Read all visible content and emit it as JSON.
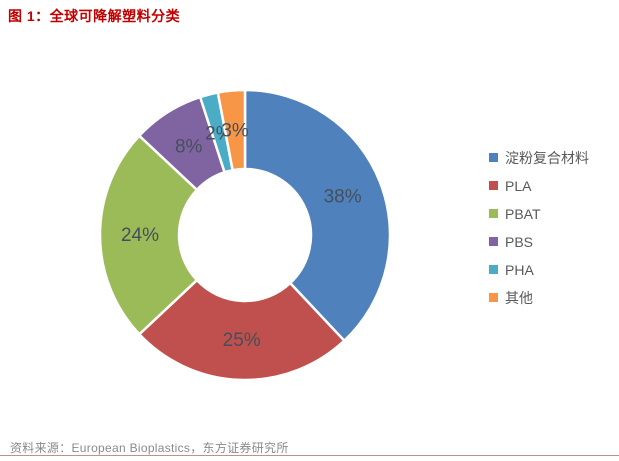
{
  "title": {
    "text": "图 1：全球可降解塑料分类"
  },
  "chart_data": {
    "type": "pie",
    "subtype": "donut",
    "title": "全球可降解塑料分类",
    "legend_position": "right",
    "direction": "clockwise",
    "start_angle_deg": 0,
    "donut_hole_ratio": 0.45,
    "grid": false,
    "series": [
      {
        "name": "淀粉复合材料",
        "value": 38,
        "label": "38%",
        "color": "#4F81BD"
      },
      {
        "name": "PLA",
        "value": 25,
        "label": "25%",
        "color": "#C0504D"
      },
      {
        "name": "PBAT",
        "value": 24,
        "label": "24%",
        "color": "#9BBB59"
      },
      {
        "name": "PBS",
        "value": 8,
        "label": "8%",
        "color": "#8064A2"
      },
      {
        "name": "PHA",
        "value": 2,
        "label": "2%",
        "color": "#4BACC6"
      },
      {
        "name": "其他",
        "value": 3,
        "label": "3%",
        "color": "#F79646"
      }
    ]
  },
  "footer": {
    "source_text": "资料来源：European Bioplastics，东方证券研究所"
  },
  "colors": {
    "title": "#C00000",
    "slice_label": "#454F5B",
    "legend_text": "#595959",
    "footer_text": "#8A8A8A",
    "footer_line": "#C58E8E",
    "background": "#FFFFFF"
  }
}
